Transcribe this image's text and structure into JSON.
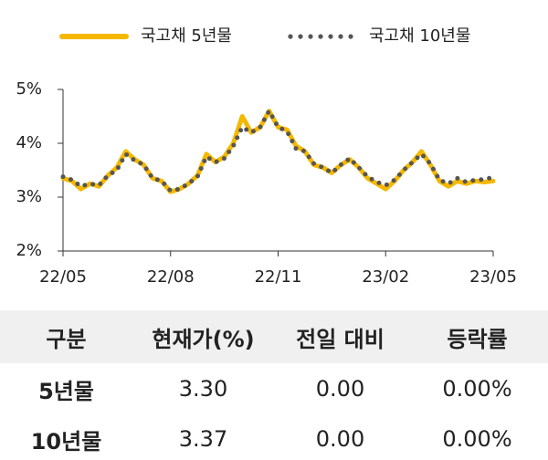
{
  "chart_data": {
    "type": "line",
    "categories": [
      "22/05",
      null,
      null,
      null,
      null,
      null,
      null,
      null,
      null,
      null,
      null,
      null,
      "22/08",
      null,
      null,
      null,
      null,
      null,
      null,
      null,
      null,
      null,
      null,
      null,
      "22/11",
      null,
      null,
      null,
      null,
      null,
      null,
      null,
      null,
      null,
      null,
      null,
      "23/02",
      null,
      null,
      null,
      null,
      null,
      null,
      null,
      null,
      null,
      null,
      null,
      "23/05"
    ],
    "series": [
      {
        "name": "국고채 5년물",
        "color": "#f5b800",
        "style": "solid",
        "values": [
          3.35,
          3.3,
          3.15,
          3.25,
          3.2,
          3.4,
          3.55,
          3.85,
          3.7,
          3.6,
          3.35,
          3.3,
          3.1,
          3.15,
          3.25,
          3.4,
          3.8,
          3.65,
          3.75,
          4.0,
          4.5,
          4.2,
          4.3,
          4.6,
          4.3,
          4.25,
          3.95,
          3.85,
          3.6,
          3.55,
          3.45,
          3.6,
          3.7,
          3.55,
          3.35,
          3.25,
          3.15,
          3.3,
          3.5,
          3.65,
          3.85,
          3.6,
          3.3,
          3.2,
          3.3,
          3.25,
          3.3,
          3.28,
          3.3
        ]
      },
      {
        "name": "국고채 10년물",
        "color": "#555555",
        "style": "dotted",
        "values": [
          3.38,
          3.32,
          3.2,
          3.25,
          3.22,
          3.4,
          3.5,
          3.8,
          3.68,
          3.6,
          3.35,
          3.3,
          3.12,
          3.15,
          3.25,
          3.38,
          3.75,
          3.65,
          3.72,
          3.95,
          4.3,
          4.2,
          4.3,
          4.6,
          4.3,
          4.22,
          3.9,
          3.85,
          3.62,
          3.55,
          3.45,
          3.6,
          3.72,
          3.55,
          3.38,
          3.28,
          3.22,
          3.32,
          3.5,
          3.65,
          3.8,
          3.62,
          3.32,
          3.25,
          3.35,
          3.28,
          3.32,
          3.33,
          3.37
        ]
      }
    ],
    "ylim": [
      2,
      5
    ],
    "yticks": [
      {
        "value": 2,
        "label": "2%"
      },
      {
        "value": 3,
        "label": "3%"
      },
      {
        "value": 4,
        "label": "4%"
      },
      {
        "value": 5,
        "label": "5%"
      }
    ],
    "legend": "top"
  },
  "table": {
    "header": [
      "구분",
      "현재가(%)",
      "전일 대비",
      "등락률"
    ],
    "rows": [
      [
        "5년물",
        "3.30",
        "0.00",
        "0.00%"
      ],
      [
        "10년물",
        "3.37",
        "0.00",
        "0.00%"
      ]
    ]
  }
}
